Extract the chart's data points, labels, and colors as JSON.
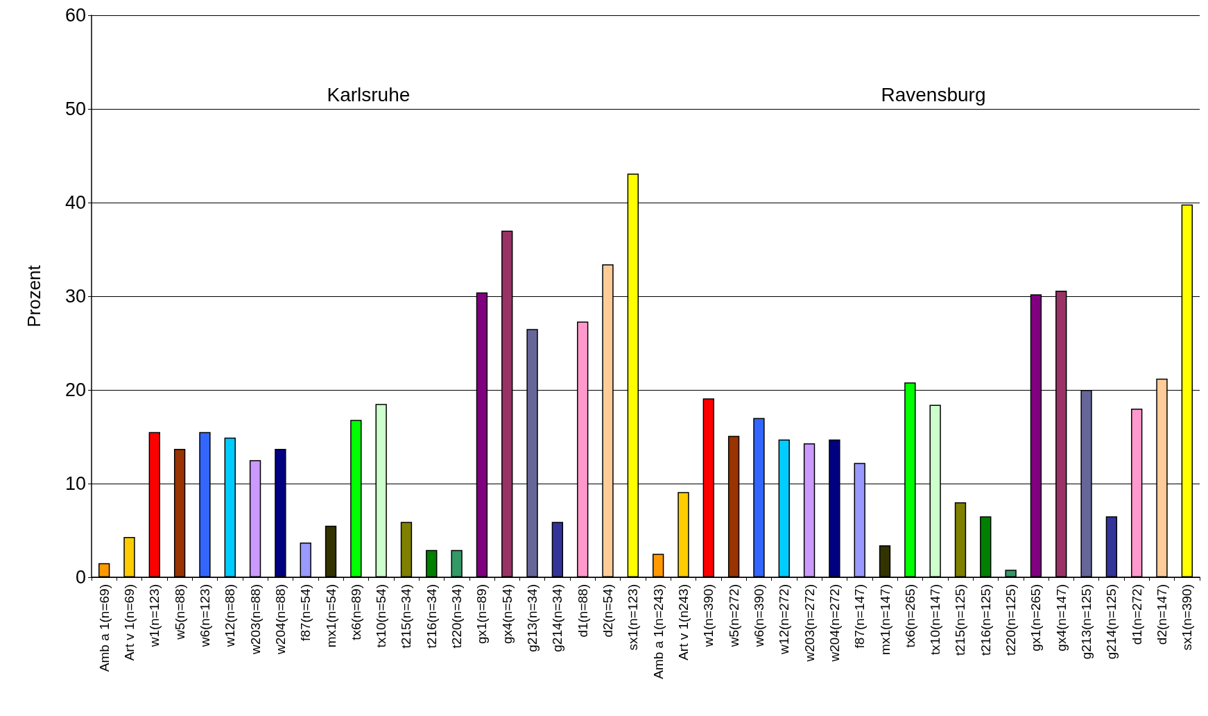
{
  "chart_data": {
    "type": "bar",
    "ylabel": "Prozent",
    "categories": [
      "Amb a 1(n=69)",
      "Art v 1(n=69)",
      "w1(n=123)",
      "w5(n=88)",
      "w6(n=123)",
      "w12(n=88)",
      "w203(n=88)",
      "w204(n=88)",
      "f87(n=54)",
      "mx1(n=54)",
      "tx6(n=89)",
      "tx10(n=54)",
      "t215(n=34)",
      "t216(n=34)",
      "t220(n=34)",
      "gx1(n=89)",
      "gx4(n=54)",
      "g213(n=34)",
      "g214(n=34)",
      "d1(n=88)",
      "d2(n=54)",
      "sx1(n=123)",
      "Amb a 1(n=243)",
      "Art v 1(n243)",
      "w1(n=390)",
      "w5(n=272)",
      "w6(n=390)",
      "w12(n=272)",
      "w203(n=272)",
      "w204(n=272)",
      "f87(n=147)",
      "mx1(n=147)",
      "tx6(n=265)",
      "tx10(n=147)",
      "t215(n=125)",
      "t216(n=125)",
      "t220(n=125)",
      "gx1(n=265)",
      "gx4(n=147)",
      "g213(n=125)",
      "g214(n=125)",
      "d1(n=272)",
      "d2(n=147)",
      "sx1(n=390)"
    ],
    "values": [
      1.5,
      4.3,
      15.5,
      13.7,
      15.5,
      14.9,
      12.5,
      13.7,
      3.7,
      5.5,
      16.8,
      18.5,
      5.9,
      2.9,
      2.9,
      30.4,
      37.0,
      26.5,
      5.9,
      27.3,
      33.4,
      43.1,
      2.5,
      9.1,
      19.1,
      15.1,
      17.0,
      14.7,
      14.3,
      14.7,
      12.2,
      3.4,
      20.8,
      18.4,
      8.0,
      6.5,
      0.8,
      30.2,
      30.6,
      20.0,
      6.5,
      18.0,
      21.2,
      39.8
    ],
    "colors": [
      "#ff9900",
      "#ffcc00",
      "#ff0000",
      "#993300",
      "#3366ff",
      "#00ccff",
      "#cc99ff",
      "#000080",
      "#9999ff",
      "#333300",
      "#00ff00",
      "#ccffcc",
      "#808000",
      "#008000",
      "#339966",
      "#800080",
      "#993366",
      "#666699",
      "#333399",
      "#ff99cc",
      "#ffcc99",
      "#ffff00",
      "#ff9900",
      "#ffcc00",
      "#ff0000",
      "#993300",
      "#3366ff",
      "#00ccff",
      "#cc99ff",
      "#000080",
      "#9999ff",
      "#333300",
      "#00ff00",
      "#ccffcc",
      "#808000",
      "#008000",
      "#339966",
      "#800080",
      "#993366",
      "#666699",
      "#333399",
      "#ff99cc",
      "#ffcc99",
      "#ffff00"
    ],
    "annotations": [
      "Karlsruhe",
      "Ravensburg"
    ],
    "ylim": [
      0,
      60
    ],
    "yticks": [
      0,
      10,
      20,
      30,
      40,
      50,
      60
    ],
    "grid": "y"
  }
}
